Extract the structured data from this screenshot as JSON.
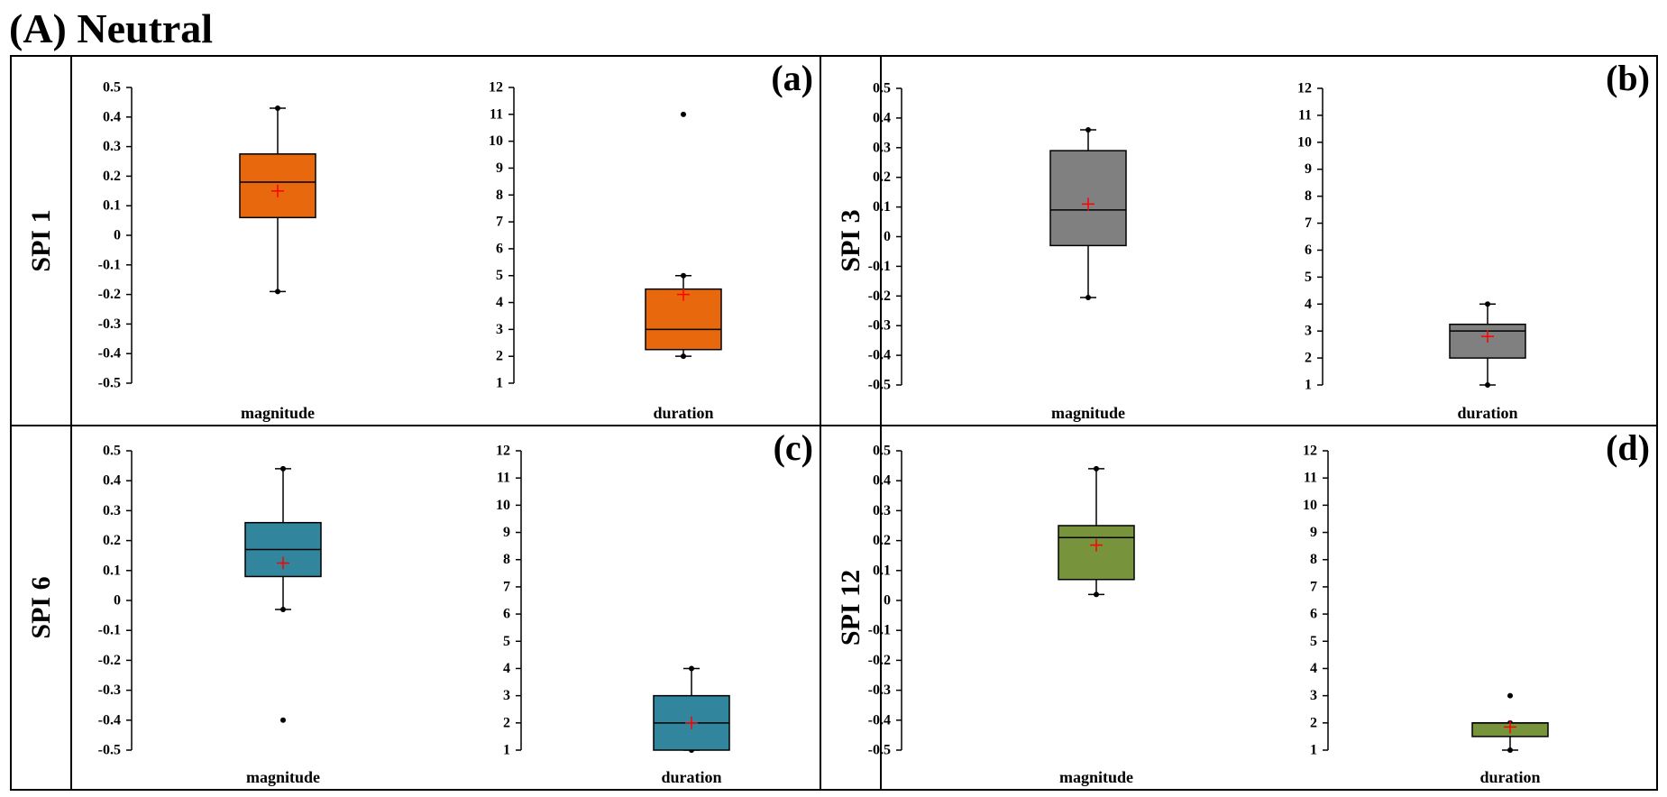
{
  "figure_title": "(A) Neutral",
  "colors": {
    "SPI 1": "#E8690D",
    "SPI 3": "#808080",
    "SPI 6": "#31859C",
    "SPI 12": "#77933C",
    "mean_marker": "#FF0000",
    "frame": "#000000"
  },
  "chart_data": [
    {
      "type": "box",
      "panel": "(a)",
      "row_label": "SPI 1",
      "boxes": [
        {
          "category": "magnitude",
          "min": -0.19,
          "q1": 0.06,
          "median": 0.18,
          "q3": 0.275,
          "max": 0.43,
          "mean": 0.15,
          "outliers": []
        },
        {
          "category": "duration",
          "min": 2,
          "q1": 2.25,
          "median": 3,
          "q3": 4.5,
          "max": 5,
          "mean": 4.3,
          "outliers": [
            11
          ]
        }
      ],
      "axes": {
        "magnitude": {
          "ylim": [
            -0.5,
            0.5
          ],
          "ticks": [
            "0.5",
            "0.4",
            "0.3",
            "0.2",
            "0.1",
            "0",
            "-0.1",
            "-0.2",
            "-0.3",
            "-0.4",
            "-0.5"
          ]
        },
        "duration": {
          "ylim": [
            1,
            12
          ],
          "ticks": [
            "12",
            "11",
            "10",
            "9",
            "8",
            "7",
            "6",
            "5",
            "4",
            "3",
            "2",
            "1"
          ]
        }
      }
    },
    {
      "type": "box",
      "panel": "(b)",
      "row_label": "SPI 3",
      "boxes": [
        {
          "category": "magnitude",
          "min": -0.205,
          "q1": -0.03,
          "median": 0.09,
          "q3": 0.29,
          "max": 0.36,
          "mean": 0.11,
          "outliers": []
        },
        {
          "category": "duration",
          "min": 1,
          "q1": 2,
          "median": 3,
          "q3": 3.25,
          "max": 4,
          "mean": 2.8,
          "outliers": []
        }
      ],
      "axes": {
        "magnitude": {
          "ylim": [
            -0.5,
            0.5
          ],
          "ticks": [
            "0.5",
            "0.4",
            "0.3",
            "0.2",
            "0.1",
            "0",
            "-0.1",
            "-0.2",
            "-0.3",
            "-0.4",
            "-0.5"
          ]
        },
        "duration": {
          "ylim": [
            1,
            12
          ],
          "ticks": [
            "12",
            "11",
            "10",
            "9",
            "8",
            "7",
            "6",
            "5",
            "4",
            "3",
            "2",
            "1"
          ]
        }
      }
    },
    {
      "type": "box",
      "panel": "(c)",
      "row_label": "SPI 6",
      "boxes": [
        {
          "category": "magnitude",
          "min": -0.03,
          "q1": 0.08,
          "median": 0.17,
          "q3": 0.26,
          "max": 0.44,
          "mean": 0.125,
          "outliers": [
            -0.4
          ]
        },
        {
          "category": "duration",
          "min": 1,
          "q1": 1,
          "median": 2,
          "q3": 3,
          "max": 4,
          "mean": 2,
          "outliers": []
        }
      ],
      "axes": {
        "magnitude": {
          "ylim": [
            -0.5,
            0.5
          ],
          "ticks": [
            "0.5",
            "0.4",
            "0.3",
            "0.2",
            "0.1",
            "0",
            "-0.1",
            "-0.2",
            "-0.3",
            "-0.4",
            "-0.5"
          ]
        },
        "duration": {
          "ylim": [
            1,
            12
          ],
          "ticks": [
            "12",
            "11",
            "10",
            "9",
            "8",
            "7",
            "6",
            "5",
            "4",
            "3",
            "2",
            "1"
          ]
        }
      }
    },
    {
      "type": "box",
      "panel": "(d)",
      "row_label": "SPI 12",
      "boxes": [
        {
          "category": "magnitude",
          "min": 0.02,
          "q1": 0.07,
          "median": 0.21,
          "q3": 0.25,
          "max": 0.44,
          "mean": 0.185,
          "outliers": []
        },
        {
          "category": "duration",
          "min": 1,
          "q1": 1.5,
          "median": 2,
          "q3": 2,
          "max": 2,
          "mean": 1.85,
          "outliers": [
            3
          ]
        }
      ],
      "axes": {
        "magnitude": {
          "ylim": [
            -0.5,
            0.5
          ],
          "ticks": [
            "0.5",
            "0.4",
            "0.3",
            "0.2",
            "0.1",
            "0",
            "-0.1",
            "-0.2",
            "-0.3",
            "-0.4",
            "-0.5"
          ]
        },
        "duration": {
          "ylim": [
            1,
            12
          ],
          "ticks": [
            "12",
            "11",
            "10",
            "9",
            "8",
            "7",
            "6",
            "5",
            "4",
            "3",
            "2",
            "1"
          ]
        }
      }
    }
  ]
}
